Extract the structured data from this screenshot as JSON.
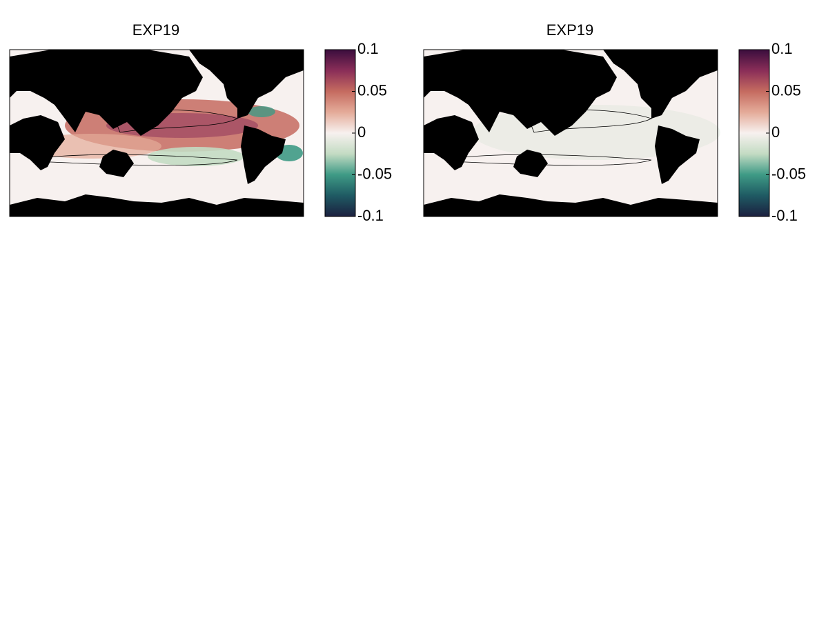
{
  "chart_data": [
    {
      "type": "map",
      "title": "EXP19",
      "zlim": [
        -0.1,
        0.1
      ],
      "zticks": [
        0.1,
        0.05,
        0,
        -0.05,
        -0.1
      ],
      "colormap": [
        "#1b1f3f",
        "#1f5a63",
        "#3e9a85",
        "#c3dbc3",
        "#f7f1ef",
        "#e4ab99",
        "#c56b60",
        "#8a2e58",
        "#3a0d3d"
      ],
      "field": "strong"
    },
    {
      "type": "map",
      "title": "EXP19",
      "zlim": [
        -0.1,
        0.1
      ],
      "zticks": [
        0.1,
        0.05,
        0,
        -0.05,
        -0.1
      ],
      "colormap": [
        "#1b1f3f",
        "#1f5a63",
        "#3e9a85",
        "#c3dbc3",
        "#f7f1ef",
        "#e4ab99",
        "#c56b60",
        "#8a2e58",
        "#3a0d3d"
      ],
      "field": "weak"
    }
  ]
}
